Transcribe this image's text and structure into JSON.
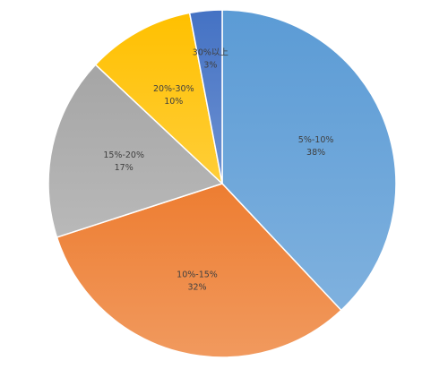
{
  "chart_data": {
    "type": "pie",
    "categories": [
      "5%-10%",
      "10%-15%",
      "15%-20%",
      "20%-30%",
      "30%以上"
    ],
    "values": [
      38,
      32,
      17,
      10,
      3
    ],
    "value_labels": [
      "38%",
      "32%",
      "17%",
      "10%",
      "3%"
    ],
    "colors": [
      "#5b9bd5",
      "#ed7d31",
      "#a5a5a5",
      "#ffc000",
      "#4472c4"
    ]
  }
}
